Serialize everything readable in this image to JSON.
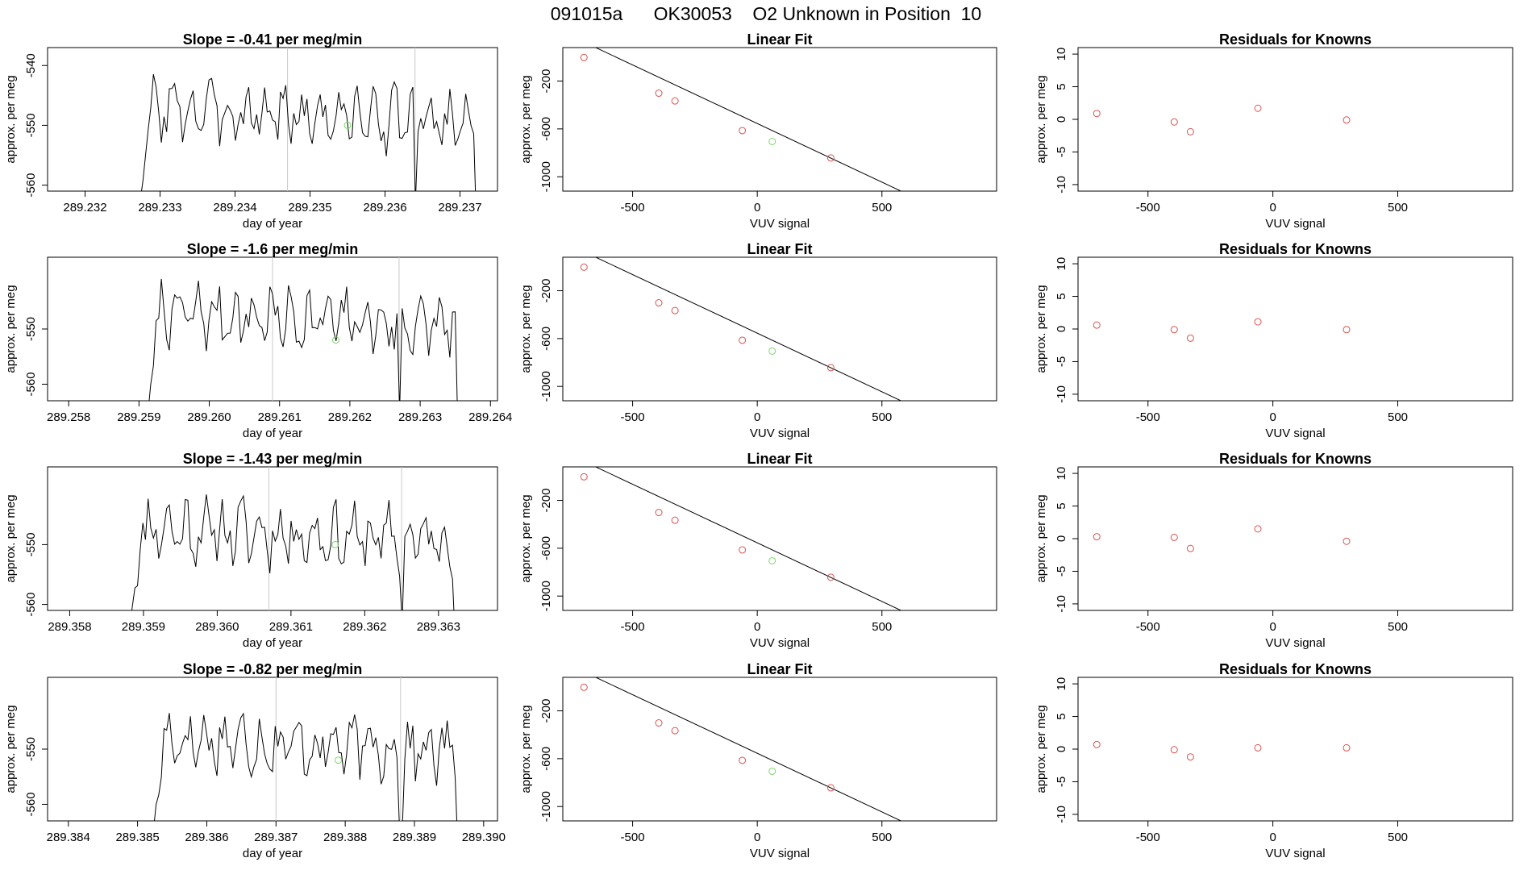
{
  "page": {
    "title": "091015a      OK30053    O2 Unknown in Position  10"
  },
  "chart_data": [
    {
      "type": "line",
      "panel": "timeseries",
      "title": "Slope =  -0.41  per meg/min",
      "xlabel": "day of year",
      "ylabel": "approx. per meg",
      "xlim": [
        289.2315,
        289.2375
      ],
      "ylim": [
        -561,
        -537
      ],
      "xticks": [
        "289.232",
        "289.233",
        "289.234",
        "289.235",
        "289.236",
        "289.237"
      ],
      "yticks": [
        "-540",
        "-550",
        "-560"
      ],
      "guides": [
        289.2347,
        289.2364
      ],
      "start": 289.2327,
      "end": 289.2372,
      "mean": -547,
      "amp": 3.2,
      "seed": 3,
      "marker": {
        "x": 289.2355,
        "y": -550,
        "color": "#7ad96a"
      }
    },
    {
      "type": "scatter",
      "panel": "fit",
      "title": "Linear Fit",
      "xlabel": "VUV signal",
      "ylabel": "approx. per meg",
      "xlim": [
        -780,
        960
      ],
      "ylim": [
        -1120,
        80
      ],
      "xticks": [
        "-500",
        "0",
        "500"
      ],
      "yticks": [
        "-200",
        "-600",
        "-1000"
      ],
      "line": {
        "slope": -0.98,
        "intercept": -555,
        "x0": -700,
        "x1": 930
      },
      "knowns": {
        "x": [
          -695,
          -395,
          -330,
          -60,
          295
        ],
        "y": [
          -3,
          -301,
          -366,
          -614,
          -843
        ]
      },
      "unknown": {
        "x": 60,
        "y": -705
      },
      "known_color": "#d9534f",
      "unknown_color": "#7ad96a"
    },
    {
      "type": "scatter",
      "panel": "residuals",
      "title": "Residuals for Knowns",
      "xlabel": "VUV signal",
      "ylabel": "approx. per meg",
      "xlim": [
        -780,
        960
      ],
      "ylim": [
        -11,
        11
      ],
      "xticks": [
        "-500",
        "0",
        "500"
      ],
      "yticks": [
        "10",
        "5",
        "0",
        "-5",
        "-10"
      ],
      "points": {
        "x": [
          -705,
          -395,
          -330,
          -60,
          295
        ],
        "y": [
          0.9,
          -0.4,
          -1.9,
          1.7,
          -0.1
        ]
      },
      "color": "#d9534f"
    },
    {
      "type": "line",
      "panel": "timeseries",
      "title": "Slope =  -1.6  per meg/min",
      "xlabel": "day of year",
      "ylabel": "approx. per meg",
      "xlim": [
        289.2577,
        289.2641
      ],
      "ylim": [
        -563,
        -537
      ],
      "xticks": [
        "289.258",
        "289.259",
        "289.260",
        "289.261",
        "289.262",
        "289.263",
        "289.264"
      ],
      "yticks": [
        "-550",
        "-560"
      ],
      "guides": [
        289.2609,
        289.2627
      ],
      "start": 289.2591,
      "end": 289.2635,
      "mean": -547,
      "amp": 3.5,
      "seed": 7,
      "marker": {
        "x": 289.2618,
        "y": -552,
        "color": "#7ad96a"
      }
    },
    {
      "type": "scatter",
      "panel": "fit",
      "title": "Linear Fit",
      "xlabel": "VUV signal",
      "ylabel": "approx. per meg",
      "xlim": [
        -780,
        960
      ],
      "ylim": [
        -1120,
        80
      ],
      "xticks": [
        "-500",
        "0",
        "500"
      ],
      "yticks": [
        "-200",
        "-600",
        "-1000"
      ],
      "line": {
        "slope": -0.98,
        "intercept": -555,
        "x0": -700,
        "x1": 930
      },
      "knowns": {
        "x": [
          -695,
          -395,
          -330,
          -60,
          295
        ],
        "y": [
          -3,
          -301,
          -366,
          -614,
          -843
        ]
      },
      "unknown": {
        "x": 60,
        "y": -705
      },
      "known_color": "#d9534f",
      "unknown_color": "#7ad96a"
    },
    {
      "type": "scatter",
      "panel": "residuals",
      "title": "Residuals for Knowns",
      "xlabel": "VUV signal",
      "ylabel": "approx. per meg",
      "xlim": [
        -780,
        960
      ],
      "ylim": [
        -11,
        11
      ],
      "xticks": [
        "-500",
        "0",
        "500"
      ],
      "yticks": [
        "10",
        "5",
        "0",
        "-5",
        "-10"
      ],
      "points": {
        "x": [
          -705,
          -395,
          -330,
          -60,
          295
        ],
        "y": [
          0.6,
          -0.1,
          -1.4,
          1.1,
          -0.1
        ]
      },
      "color": "#d9534f"
    },
    {
      "type": "line",
      "panel": "timeseries",
      "title": "Slope =  -1.43  per meg/min",
      "xlabel": "day of year",
      "ylabel": "approx. per meg",
      "xlim": [
        289.3577,
        289.3638
      ],
      "ylim": [
        -561,
        -537
      ],
      "xticks": [
        "289.358",
        "289.359",
        "289.360",
        "289.361",
        "289.362",
        "289.363"
      ],
      "yticks": [
        "-550",
        "-560"
      ],
      "guides": [
        289.3607,
        289.3625
      ],
      "start": 289.3588,
      "end": 289.3632,
      "mean": -547,
      "amp": 3.4,
      "seed": 11,
      "marker": {
        "x": 289.3616,
        "y": -550,
        "color": "#7ad96a"
      }
    },
    {
      "type": "scatter",
      "panel": "fit",
      "title": "Linear Fit",
      "xlabel": "VUV signal",
      "ylabel": "approx. per meg",
      "xlim": [
        -780,
        960
      ],
      "ylim": [
        -1120,
        80
      ],
      "xticks": [
        "-500",
        "0",
        "500"
      ],
      "yticks": [
        "-200",
        "-600",
        "-1000"
      ],
      "line": {
        "slope": -0.98,
        "intercept": -555,
        "x0": -700,
        "x1": 930
      },
      "knowns": {
        "x": [
          -695,
          -395,
          -330,
          -60,
          295
        ],
        "y": [
          -3,
          -301,
          -366,
          -614,
          -843
        ]
      },
      "unknown": {
        "x": 60,
        "y": -705
      },
      "known_color": "#d9534f",
      "unknown_color": "#7ad96a"
    },
    {
      "type": "scatter",
      "panel": "residuals",
      "title": "Residuals for Knowns",
      "xlabel": "VUV signal",
      "ylabel": "approx. per meg",
      "xlim": [
        -780,
        960
      ],
      "ylim": [
        -11,
        11
      ],
      "xticks": [
        "-500",
        "0",
        "500"
      ],
      "yticks": [
        "10",
        "5",
        "0",
        "-5",
        "-10"
      ],
      "points": {
        "x": [
          -705,
          -395,
          -330,
          -60,
          295
        ],
        "y": [
          0.3,
          0.2,
          -1.5,
          1.5,
          -0.4
        ]
      },
      "color": "#d9534f"
    },
    {
      "type": "line",
      "panel": "timeseries",
      "title": "Slope =  -0.82  per meg/min",
      "xlabel": "day of year",
      "ylabel": "approx. per meg",
      "xlim": [
        289.3837,
        289.3902
      ],
      "ylim": [
        -563,
        -537
      ],
      "xticks": [
        "289.384",
        "289.385",
        "289.386",
        "289.387",
        "289.388",
        "289.389",
        "289.390"
      ],
      "yticks": [
        "-550",
        "-560"
      ],
      "guides": [
        289.387,
        289.3888
      ],
      "start": 289.3852,
      "end": 289.3896,
      "mean": -548,
      "amp": 3.5,
      "seed": 17,
      "marker": {
        "x": 289.3879,
        "y": -552,
        "color": "#7ad96a"
      }
    },
    {
      "type": "scatter",
      "panel": "fit",
      "title": "Linear Fit",
      "xlabel": "VUV signal",
      "ylabel": "approx. per meg",
      "xlim": [
        -780,
        960
      ],
      "ylim": [
        -1120,
        80
      ],
      "xticks": [
        "-500",
        "0",
        "500"
      ],
      "yticks": [
        "-200",
        "-600",
        "-1000"
      ],
      "line": {
        "slope": -0.98,
        "intercept": -555,
        "x0": -700,
        "x1": 930
      },
      "knowns": {
        "x": [
          -695,
          -395,
          -330,
          -60,
          295
        ],
        "y": [
          -3,
          -301,
          -366,
          -614,
          -843
        ]
      },
      "unknown": {
        "x": 60,
        "y": -705
      },
      "known_color": "#d9534f",
      "unknown_color": "#7ad96a"
    },
    {
      "type": "scatter",
      "panel": "residuals",
      "title": "Residuals for Knowns",
      "xlabel": "VUV signal",
      "ylabel": "approx. per meg",
      "xlim": [
        -780,
        960
      ],
      "ylim": [
        -11,
        11
      ],
      "xticks": [
        "-500",
        "0",
        "500"
      ],
      "yticks": [
        "10",
        "5",
        "0",
        "-5",
        "-10"
      ],
      "points": {
        "x": [
          -705,
          -395,
          -330,
          -60,
          295
        ],
        "y": [
          0.7,
          -0.1,
          -1.2,
          0.2,
          0.2
        ]
      },
      "color": "#d9534f"
    }
  ]
}
